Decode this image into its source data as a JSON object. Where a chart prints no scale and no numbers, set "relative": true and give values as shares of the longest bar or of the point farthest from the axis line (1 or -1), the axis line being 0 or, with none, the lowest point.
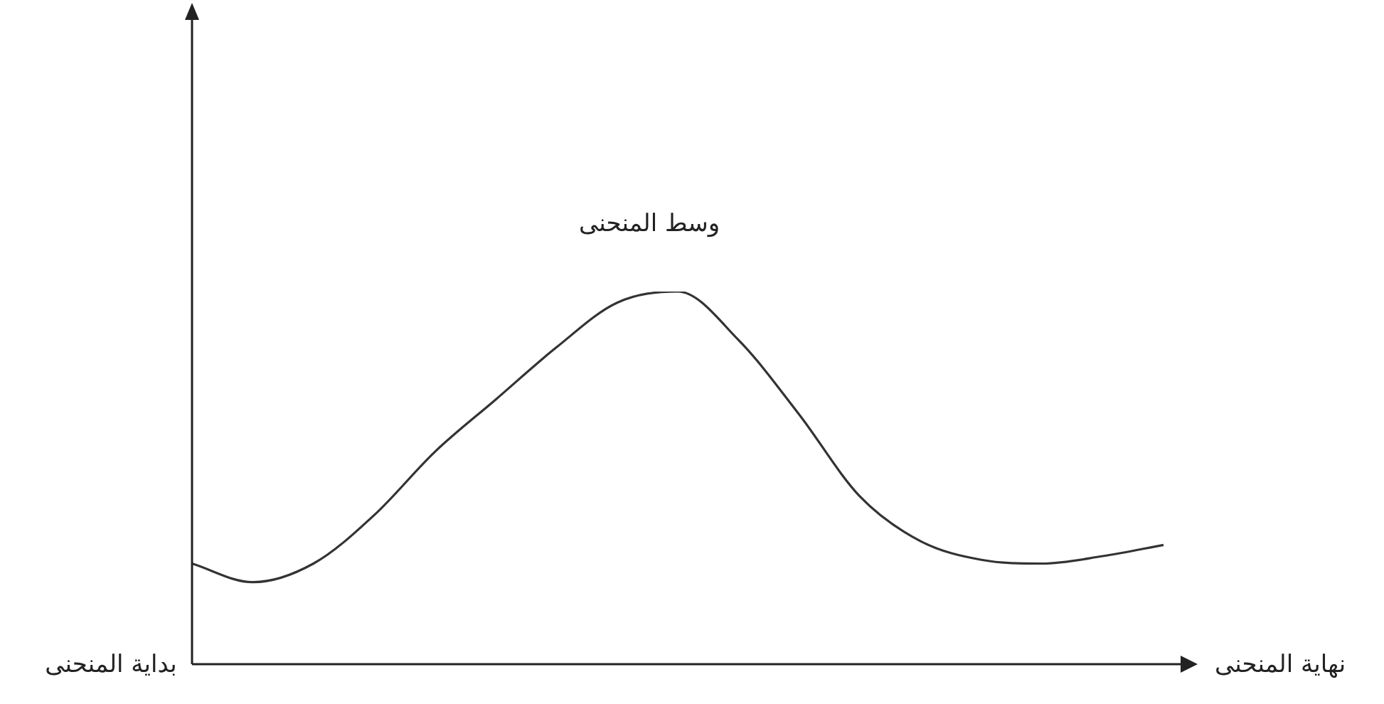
{
  "chart_data": {
    "type": "line",
    "relative": true,
    "categories": [
      null,
      null,
      null,
      null,
      null,
      null,
      null,
      null,
      null,
      null,
      null,
      null,
      null,
      null,
      null,
      null,
      null
    ],
    "series": [
      {
        "color": "#333333",
        "values": [
          0.27,
          0.22,
          0.27,
          0.4,
          0.57,
          0.71,
          0.85,
          0.97,
          1,
          0.87,
          0.67,
          0.45,
          0.33,
          0.28,
          0.27,
          0.29,
          0.32
        ]
      }
    ],
    "annotations": [
      "بداية المنحنى",
      "وسط المنحنى",
      "نهاية المنحنى"
    ],
    "legend": false,
    "marker": "none",
    "line_style": "solid"
  }
}
